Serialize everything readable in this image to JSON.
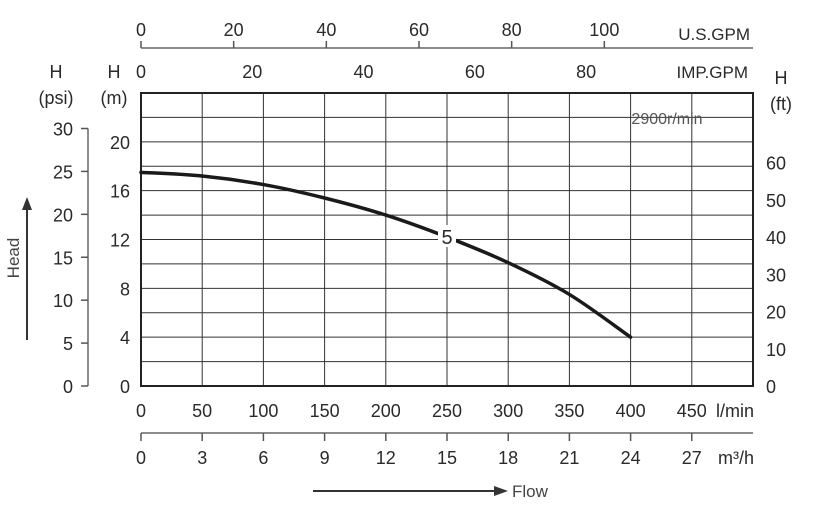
{
  "chart_data": {
    "type": "line",
    "speed_label": "2900r/min",
    "x_axes": {
      "us_gpm": {
        "unit": "U.S.GPM",
        "ticks": [
          "0",
          "20",
          "40",
          "60",
          "80",
          "100"
        ],
        "values": [
          0,
          20,
          40,
          60,
          80,
          100
        ]
      },
      "imp_gpm": {
        "unit": "IMP.GPM",
        "ticks": [
          "0",
          "20",
          "40",
          "60",
          "80"
        ],
        "values": [
          0,
          20,
          40,
          60,
          80
        ]
      },
      "l_min": {
        "unit": "l/min",
        "ticks": [
          "0",
          "50",
          "100",
          "150",
          "200",
          "250",
          "300",
          "350",
          "400",
          "450"
        ],
        "values": [
          0,
          50,
          100,
          150,
          200,
          250,
          300,
          350,
          400,
          450
        ]
      },
      "m3_h": {
        "unit": "m³/h",
        "ticks": [
          "0",
          "3",
          "6",
          "9",
          "12",
          "15",
          "18",
          "21",
          "24",
          "27"
        ],
        "values": [
          0,
          3,
          6,
          9,
          12,
          15,
          18,
          21,
          24,
          27
        ]
      }
    },
    "y_axes": {
      "m": {
        "label": "H",
        "unit": "(m)",
        "ticks": [
          "0",
          "4",
          "8",
          "12",
          "16",
          "20"
        ],
        "values": [
          0,
          4,
          8,
          12,
          16,
          20
        ]
      },
      "psi": {
        "label": "H",
        "unit": "(psi)",
        "ticks": [
          "0",
          "5",
          "10",
          "15",
          "20",
          "25",
          "30"
        ],
        "values": [
          0,
          5,
          10,
          15,
          20,
          25,
          30
        ]
      },
      "ft": {
        "label": "H",
        "unit": "(ft)",
        "ticks": [
          "0",
          "10",
          "20",
          "30",
          "40",
          "50",
          "60"
        ],
        "values": [
          0,
          10,
          20,
          30,
          40,
          50,
          60
        ]
      }
    },
    "xlim_lmin": [
      0,
      500
    ],
    "ylim_m": [
      0,
      24
    ],
    "grid": true,
    "series": [
      {
        "name": "5",
        "x_lmin": [
          0,
          50,
          100,
          150,
          200,
          250,
          300,
          350,
          400
        ],
        "y_m": [
          17.5,
          17.2,
          16.5,
          15.4,
          14.0,
          12.2,
          10.1,
          7.5,
          4.0
        ]
      }
    ],
    "head_label": "Head",
    "flow_label": "Flow"
  }
}
